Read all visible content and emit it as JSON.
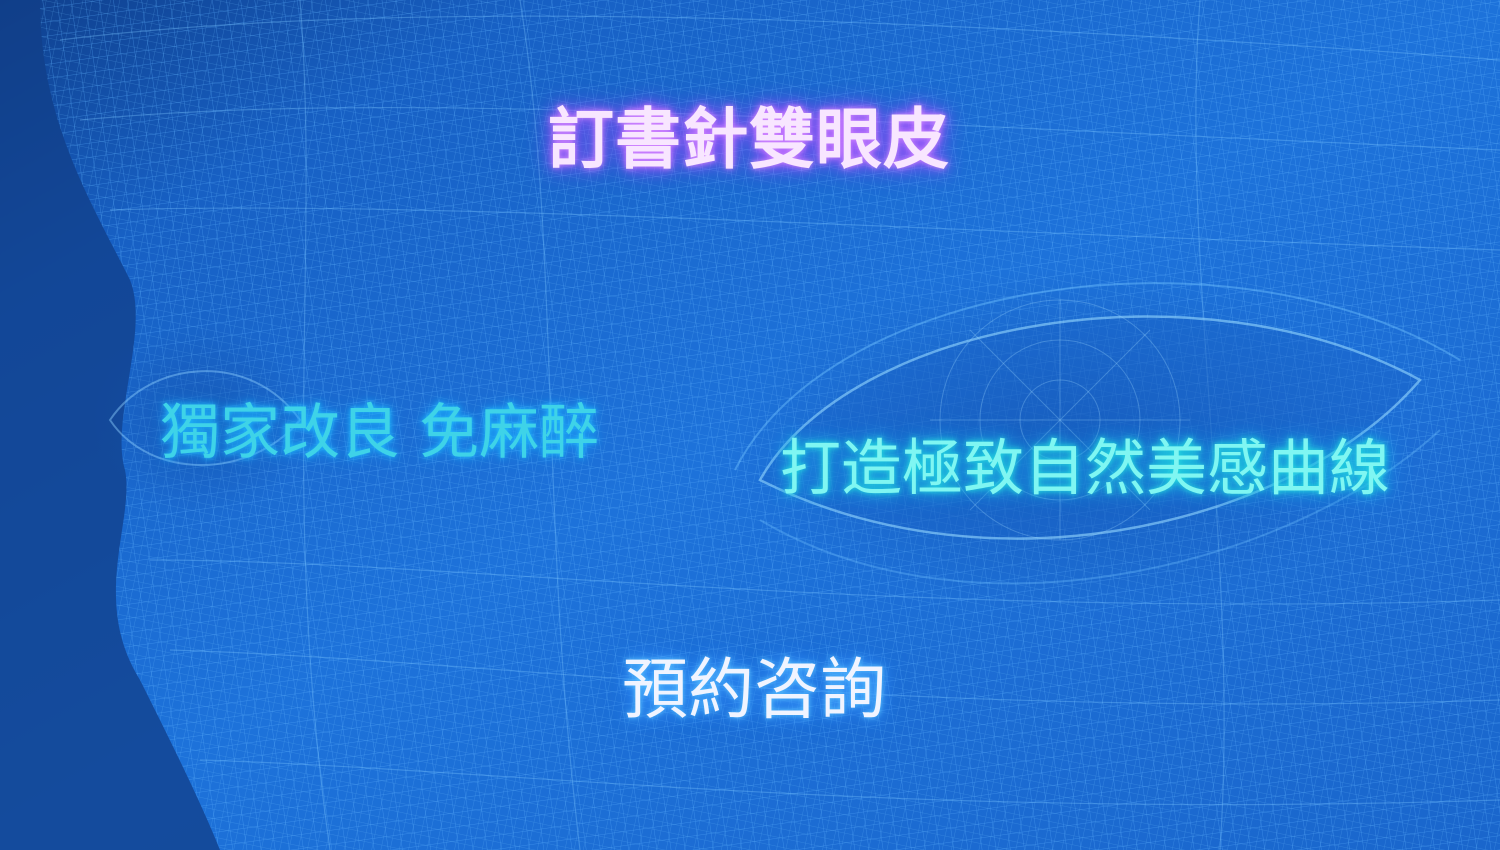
{
  "headline": "訂書針雙眼皮",
  "feature_left": "獨家改良 免麻醉",
  "feature_right": "打造極致自然美感曲線",
  "cta_label": "預約咨詢",
  "colors": {
    "background": "#1c6fd6",
    "background_dark": "#0f3f8c",
    "mesh_line": "#4ea8ff",
    "headline_glow": "#b25cff",
    "feature_left_text": "#3ed3e8",
    "feature_right_text": "#7ff6f2",
    "cta_text": "#f0f4ff"
  },
  "background_image": "wireframe-face-mesh"
}
